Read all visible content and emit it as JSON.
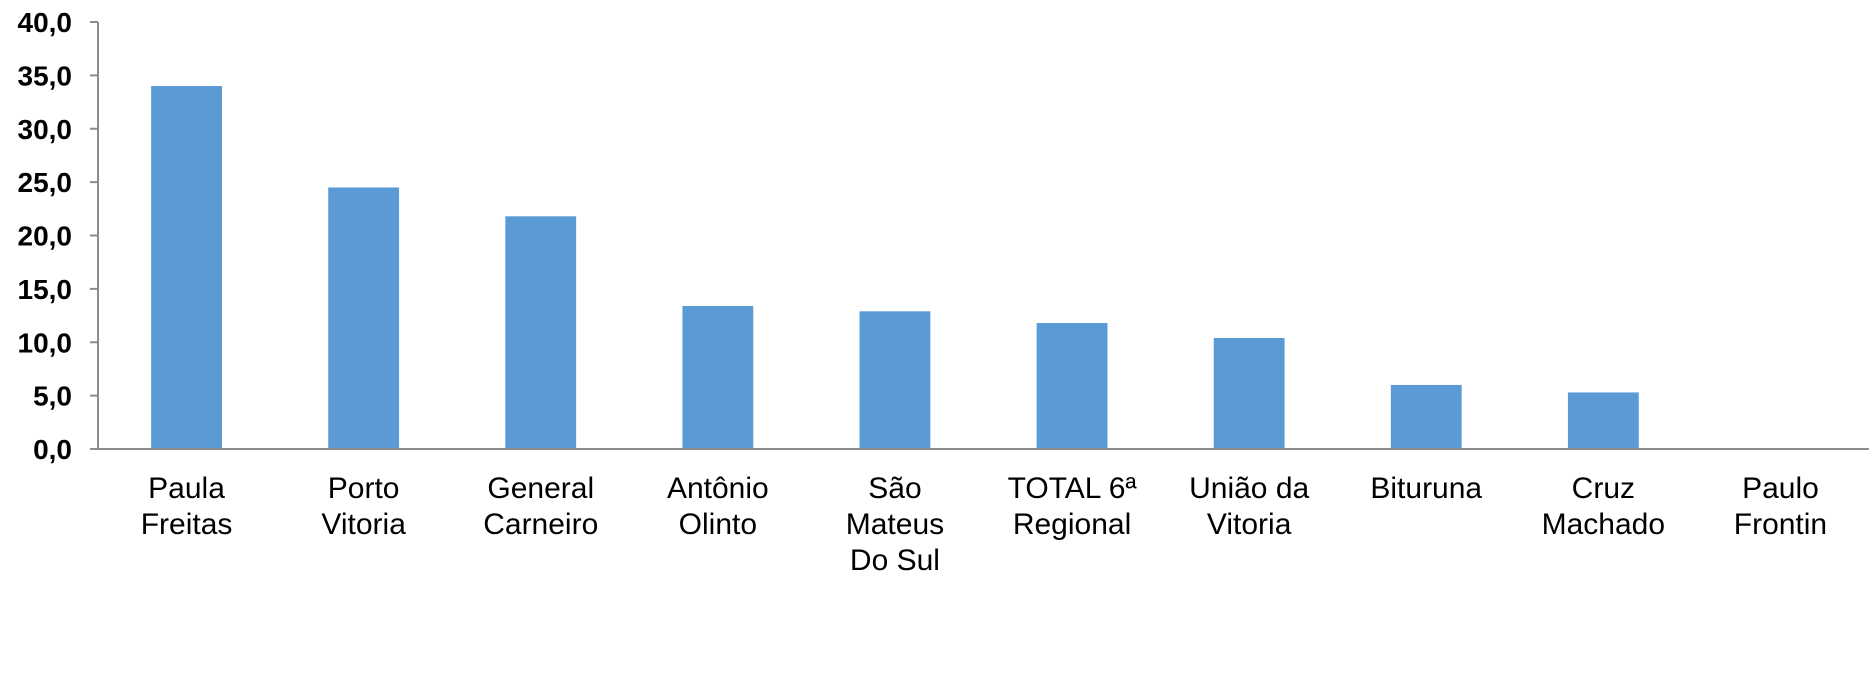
{
  "chart_data": {
    "type": "bar",
    "categories": [
      [
        "Paula",
        "Freitas"
      ],
      [
        "Porto",
        "Vitoria"
      ],
      [
        "General",
        "Carneiro"
      ],
      [
        "Antônio",
        "Olinto"
      ],
      [
        "São",
        "Mateus",
        "Do Sul"
      ],
      [
        "TOTAL 6ª",
        "Regional"
      ],
      [
        "União da",
        "Vitoria"
      ],
      [
        "Bituruna"
      ],
      [
        "Cruz",
        "Machado"
      ],
      [
        "Paulo",
        "Frontin"
      ]
    ],
    "values": [
      34.0,
      24.5,
      21.8,
      13.4,
      12.9,
      11.8,
      10.4,
      6.0,
      5.3,
      0.0
    ],
    "ylim": [
      0,
      40
    ],
    "yticks": [
      "0,0",
      "5,0",
      "10,0",
      "15,0",
      "20,0",
      "25,0",
      "30,0",
      "35,0",
      "40,0"
    ],
    "bar_color": "#5b9bd5",
    "grid": false,
    "legend": "none"
  }
}
